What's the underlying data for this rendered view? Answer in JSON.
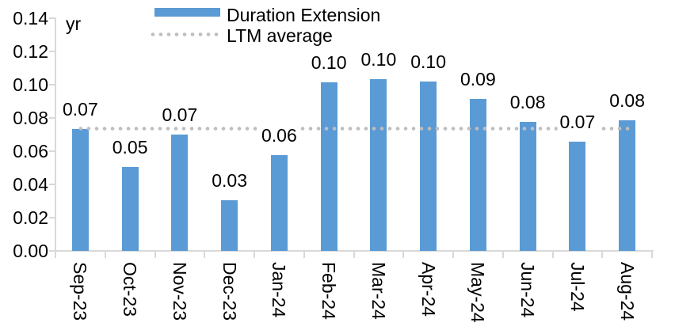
{
  "chart_data": {
    "type": "bar",
    "title": "",
    "unit_label": "yr",
    "categories": [
      "Sep-23",
      "Oct-23",
      "Nov-23",
      "Dec-23",
      "Jan-24",
      "Feb-24",
      "Mar-24",
      "Apr-24",
      "May-24",
      "Jun-24",
      "Jul-24",
      "Aug-24"
    ],
    "series": [
      {
        "name": "Duration Extension",
        "type": "bar",
        "color": "#5B9BD5",
        "values": [
          0.07,
          0.05,
          0.07,
          0.03,
          0.06,
          0.1,
          0.1,
          0.1,
          0.09,
          0.08,
          0.07,
          0.08
        ],
        "values_precise": [
          0.0735,
          0.0503,
          0.0702,
          0.0307,
          0.0578,
          0.1016,
          0.1035,
          0.1021,
          0.0912,
          0.0775,
          0.0655,
          0.0788
        ],
        "data_labels": [
          "0.07",
          "0.05",
          "0.07",
          "0.03",
          "0.06",
          "0.10",
          "0.10",
          "0.10",
          "0.09",
          "0.08",
          "0.07",
          "0.08"
        ]
      },
      {
        "name": "LTM average",
        "type": "line",
        "line_style": "dotted",
        "color": "#BEBEBE",
        "value": 0.0735
      }
    ],
    "ylim": [
      0,
      0.14
    ],
    "ytick_labels": [
      "0.00",
      "0.02",
      "0.04",
      "0.06",
      "0.08",
      "0.10",
      "0.12",
      "0.14"
    ],
    "grid": false,
    "legend_position": "top",
    "x_label_rotation_deg": 90
  },
  "colors": {
    "bar": "#5B9BD5",
    "ltm_dots": "#BEBEBE",
    "axis": "#D9D9D9",
    "text": "#000000",
    "background": "#FFFFFF"
  }
}
